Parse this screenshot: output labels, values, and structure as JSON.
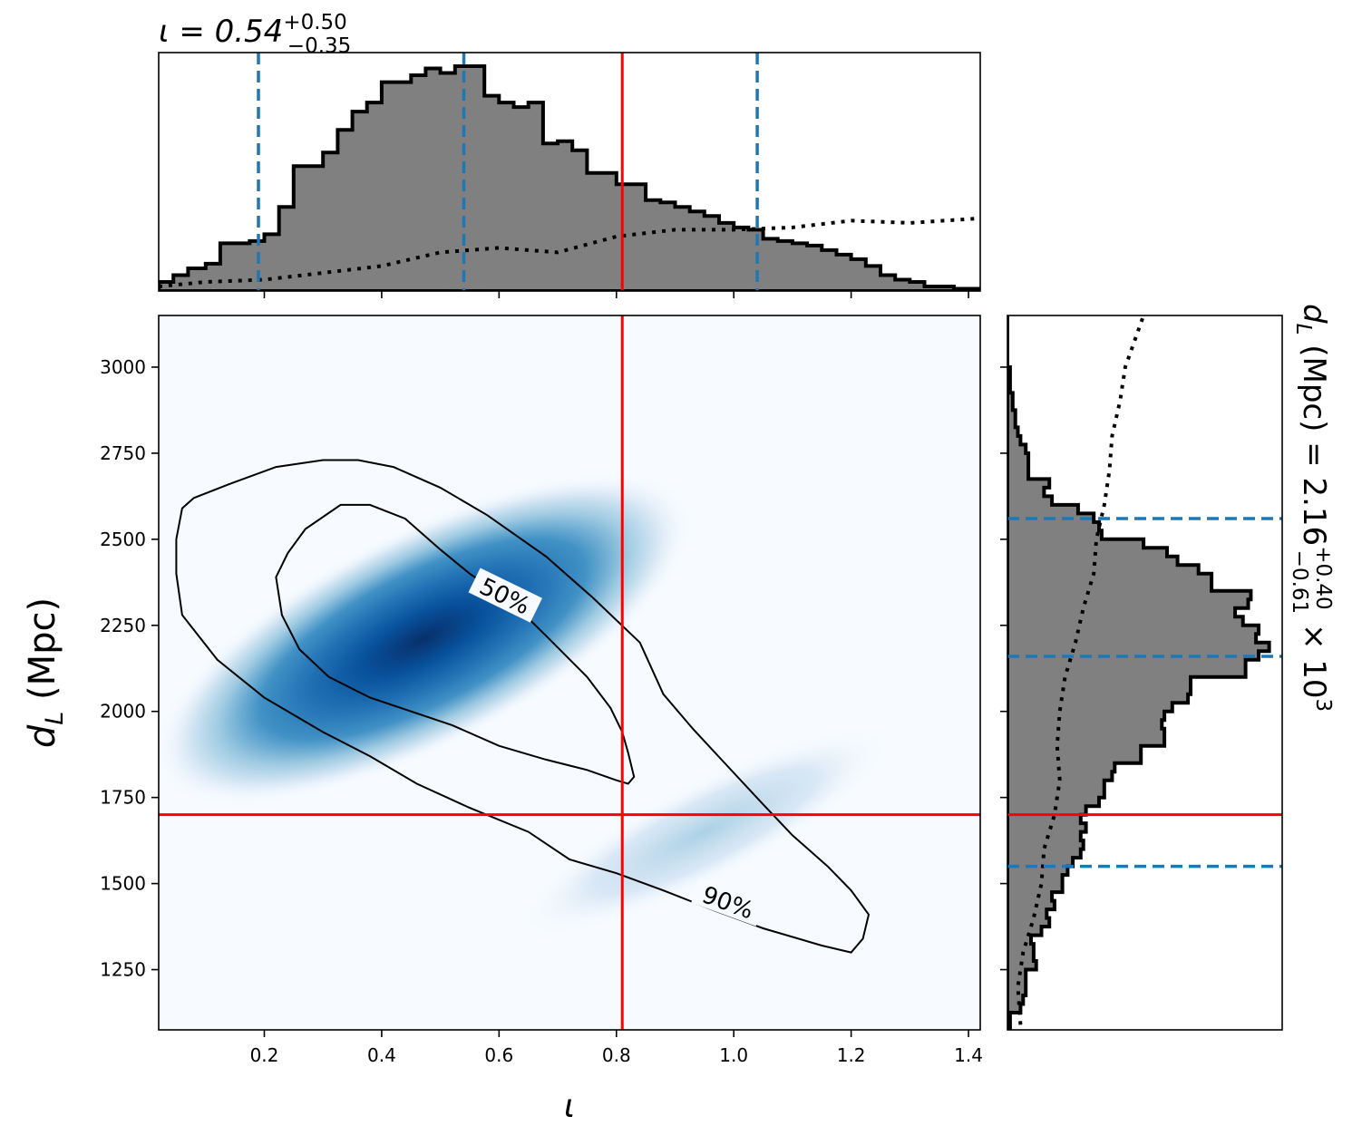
{
  "chart_data": [
    {
      "type": "heatmap",
      "panel": "joint",
      "xlabel": "ι",
      "ylabel_symbol": "d",
      "ylabel_subscript": "L",
      "ylabel_unit": " (Mpc)",
      "xlim": [
        0.02,
        1.42
      ],
      "ylim": [
        1075,
        3150
      ],
      "xticks": [
        "0.2",
        "0.4",
        "0.6",
        "0.8",
        "1.0",
        "1.2",
        "1.4"
      ],
      "yticks": [
        "1250",
        "1500",
        "1750",
        "2000",
        "2250",
        "2500",
        "2750",
        "3000"
      ],
      "colormap": "Blues",
      "density_peak": {
        "x": 0.47,
        "y": 2210
      },
      "density_principal_axis_deg": -27,
      "contour_labels": [
        "50%",
        "90%"
      ],
      "contour_50": [
        [
          0.22,
          2390
        ],
        [
          0.24,
          2460
        ],
        [
          0.27,
          2530
        ],
        [
          0.33,
          2600
        ],
        [
          0.38,
          2600
        ],
        [
          0.44,
          2560
        ],
        [
          0.5,
          2470
        ],
        [
          0.55,
          2400
        ],
        [
          0.62,
          2320
        ],
        [
          0.68,
          2220
        ],
        [
          0.75,
          2100
        ],
        [
          0.79,
          2010
        ],
        [
          0.81,
          1940
        ],
        [
          0.82,
          1880
        ],
        [
          0.83,
          1810
        ],
        [
          0.82,
          1790
        ],
        [
          0.8,
          1800
        ],
        [
          0.75,
          1830
        ],
        [
          0.68,
          1860
        ],
        [
          0.6,
          1900
        ],
        [
          0.52,
          1960
        ],
        [
          0.45,
          2000
        ],
        [
          0.38,
          2040
        ],
        [
          0.31,
          2100
        ],
        [
          0.26,
          2180
        ],
        [
          0.23,
          2280
        ],
        [
          0.22,
          2390
        ]
      ],
      "contour_90": [
        [
          0.05,
          2500
        ],
        [
          0.06,
          2590
        ],
        [
          0.08,
          2620
        ],
        [
          0.14,
          2660
        ],
        [
          0.22,
          2710
        ],
        [
          0.3,
          2730
        ],
        [
          0.36,
          2730
        ],
        [
          0.42,
          2710
        ],
        [
          0.5,
          2650
        ],
        [
          0.58,
          2570
        ],
        [
          0.68,
          2450
        ],
        [
          0.76,
          2330
        ],
        [
          0.84,
          2200
        ],
        [
          0.88,
          2050
        ],
        [
          0.93,
          1950
        ],
        [
          0.99,
          1840
        ],
        [
          1.05,
          1730
        ],
        [
          1.1,
          1640
        ],
        [
          1.16,
          1550
        ],
        [
          1.2,
          1480
        ],
        [
          1.23,
          1410
        ],
        [
          1.22,
          1340
        ],
        [
          1.2,
          1300
        ],
        [
          1.15,
          1320
        ],
        [
          1.05,
          1370
        ],
        [
          0.97,
          1420
        ],
        [
          0.88,
          1480
        ],
        [
          0.8,
          1530
        ],
        [
          0.72,
          1570
        ],
        [
          0.65,
          1650
        ],
        [
          0.55,
          1720
        ],
        [
          0.46,
          1790
        ],
        [
          0.38,
          1870
        ],
        [
          0.3,
          1940
        ],
        [
          0.2,
          2040
        ],
        [
          0.12,
          2150
        ],
        [
          0.06,
          2280
        ],
        [
          0.05,
          2400
        ],
        [
          0.05,
          2500
        ]
      ],
      "truth": {
        "x": 0.81,
        "y": 1700
      },
      "truth_color": "#ff0000",
      "quantile_color": "#1f77b4"
    },
    {
      "type": "bar",
      "panel": "marginal-iota",
      "title_symbol": "ι = 0.54",
      "title_sup": "+0.50",
      "title_sub": "−0.35",
      "bin_edges": [
        0.02,
        0.045,
        0.07,
        0.1,
        0.125,
        0.15,
        0.175,
        0.2,
        0.225,
        0.25,
        0.275,
        0.3,
        0.325,
        0.35,
        0.375,
        0.4,
        0.425,
        0.45,
        0.475,
        0.5,
        0.525,
        0.55,
        0.575,
        0.6,
        0.625,
        0.65,
        0.675,
        0.7,
        0.725,
        0.75,
        0.775,
        0.8,
        0.825,
        0.85,
        0.875,
        0.9,
        0.925,
        0.95,
        0.975,
        1.0,
        1.025,
        1.05,
        1.075,
        1.1,
        1.125,
        1.15,
        1.175,
        1.2,
        1.225,
        1.25,
        1.275,
        1.3,
        1.325,
        1.35,
        1.375,
        1.4,
        1.42
      ],
      "values": [
        0.04,
        0.07,
        0.1,
        0.12,
        0.21,
        0.21,
        0.22,
        0.25,
        0.37,
        0.55,
        0.55,
        0.61,
        0.71,
        0.79,
        0.83,
        0.92,
        0.92,
        0.95,
        0.98,
        0.96,
        0.99,
        0.99,
        0.86,
        0.83,
        0.81,
        0.83,
        0.65,
        0.66,
        0.62,
        0.52,
        0.52,
        0.47,
        0.47,
        0.4,
        0.39,
        0.37,
        0.35,
        0.33,
        0.3,
        0.28,
        0.27,
        0.23,
        0.22,
        0.21,
        0.2,
        0.18,
        0.16,
        0.14,
        0.11,
        0.07,
        0.05,
        0.04,
        0.02,
        0.02,
        0.01,
        0.01
      ],
      "ylim": [
        0,
        1.05
      ],
      "prior_curve": [
        [
          0.02,
          0.02
        ],
        [
          0.1,
          0.04
        ],
        [
          0.2,
          0.05
        ],
        [
          0.3,
          0.08
        ],
        [
          0.4,
          0.11
        ],
        [
          0.5,
          0.17
        ],
        [
          0.6,
          0.19
        ],
        [
          0.7,
          0.17
        ],
        [
          0.8,
          0.24
        ],
        [
          0.9,
          0.27
        ],
        [
          1.0,
          0.27
        ],
        [
          1.1,
          0.28
        ],
        [
          1.2,
          0.31
        ],
        [
          1.3,
          0.3
        ],
        [
          1.42,
          0.32
        ]
      ],
      "quantiles": [
        0.19,
        0.54,
        1.04
      ],
      "truth": 0.81
    },
    {
      "type": "bar",
      "panel": "marginal-dL",
      "label_symbol": "d",
      "label_subscript": "L",
      "label_text": " (Mpc) = 2.16",
      "label_sup": "+0.40",
      "label_sub": "−0.61",
      "label_tail": " × 10",
      "label_exp": "3",
      "bin_edges": [
        1075,
        1100,
        1125,
        1150,
        1175,
        1200,
        1225,
        1250,
        1275,
        1300,
        1325,
        1350,
        1375,
        1400,
        1425,
        1450,
        1475,
        1500,
        1525,
        1550,
        1575,
        1600,
        1625,
        1650,
        1675,
        1700,
        1725,
        1750,
        1775,
        1800,
        1825,
        1850,
        1875,
        1900,
        1925,
        1950,
        1975,
        2000,
        2025,
        2050,
        2075,
        2100,
        2125,
        2150,
        2175,
        2200,
        2225,
        2250,
        2275,
        2300,
        2325,
        2350,
        2375,
        2400,
        2425,
        2450,
        2475,
        2500,
        2525,
        2550,
        2575,
        2600,
        2625,
        2650,
        2675,
        2700,
        2725,
        2750,
        2775,
        2800,
        2825,
        2850,
        2875,
        2900,
        2925,
        2950,
        2975,
        3000,
        3025,
        3050,
        3075,
        3100,
        3150
      ],
      "values": [
        0.01,
        0.01,
        0.05,
        0.06,
        0.07,
        0.07,
        0.07,
        0.11,
        0.1,
        0.1,
        0.09,
        0.13,
        0.16,
        0.15,
        0.18,
        0.17,
        0.21,
        0.21,
        0.23,
        0.25,
        0.28,
        0.29,
        0.28,
        0.3,
        0.28,
        0.3,
        0.35,
        0.37,
        0.37,
        0.4,
        0.41,
        0.51,
        0.51,
        0.6,
        0.6,
        0.59,
        0.6,
        0.63,
        0.69,
        0.7,
        0.7,
        0.91,
        0.91,
        0.96,
        1.0,
        0.95,
        0.96,
        0.9,
        0.87,
        0.92,
        0.93,
        0.78,
        0.78,
        0.73,
        0.65,
        0.61,
        0.52,
        0.36,
        0.35,
        0.33,
        0.27,
        0.17,
        0.14,
        0.16,
        0.08,
        0.08,
        0.08,
        0.07,
        0.05,
        0.04,
        0.03,
        0.03,
        0.02,
        0.02,
        0.01,
        0.01,
        0.01,
        0.0,
        0.0,
        0.0,
        0.0,
        0.0
      ],
      "xlim": [
        0,
        1.05
      ],
      "prior_curve": [
        [
          1090,
          0.05
        ],
        [
          1200,
          0.04
        ],
        [
          1300,
          0.06
        ],
        [
          1400,
          0.1
        ],
        [
          1500,
          0.13
        ],
        [
          1600,
          0.14
        ],
        [
          1700,
          0.18
        ],
        [
          1800,
          0.2
        ],
        [
          1900,
          0.19
        ],
        [
          2000,
          0.2
        ],
        [
          2100,
          0.22
        ],
        [
          2200,
          0.26
        ],
        [
          2300,
          0.29
        ],
        [
          2400,
          0.33
        ],
        [
          2500,
          0.34
        ],
        [
          2600,
          0.37
        ],
        [
          2700,
          0.39
        ],
        [
          2800,
          0.4
        ],
        [
          2900,
          0.43
        ],
        [
          3000,
          0.45
        ],
        [
          3150,
          0.52
        ]
      ],
      "quantiles": [
        1550,
        2560,
        2160
      ],
      "truth": 1700
    }
  ]
}
